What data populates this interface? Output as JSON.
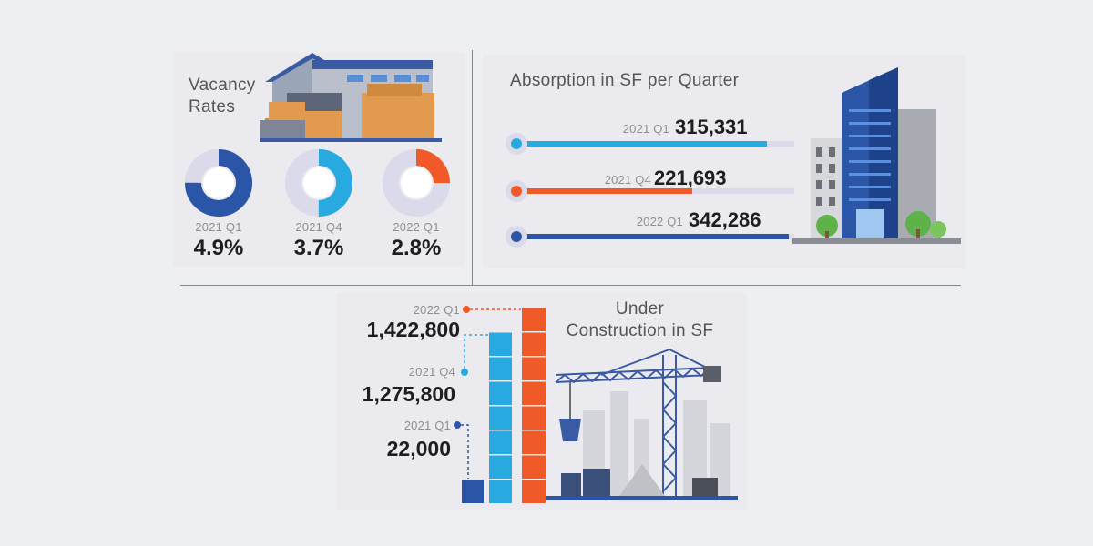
{
  "colors": {
    "dark_blue": "#2b56a8",
    "light_blue": "#28aae1",
    "orange": "#f05a28",
    "track": "#dadaea",
    "text": "#1e1e1e",
    "label": "#8f8f8f"
  },
  "icons": {
    "warehouse": "warehouse-illustration",
    "office": "office-building-illustration",
    "crane": "construction-crane-illustration"
  },
  "vacancy": {
    "title_line1": "Vacancy",
    "title_line2": "Rates",
    "items": [
      {
        "period": "2021 Q1",
        "value_label": "4.9%",
        "fraction": 0.75,
        "color": "#2b56a8"
      },
      {
        "period": "2021 Q4",
        "value_label": "3.7%",
        "fraction": 0.5,
        "color": "#28aae1"
      },
      {
        "period": "2022 Q1",
        "value_label": "2.8%",
        "fraction": 0.25,
        "color": "#f05a28"
      }
    ]
  },
  "absorption": {
    "title": "Absorption in SF per Quarter",
    "items": [
      {
        "period": "2021 Q1",
        "value_label": "315,331",
        "value": 315331,
        "color": "#28aae1"
      },
      {
        "period": "2021 Q4",
        "value_label": "221,693",
        "value": 221693,
        "color": "#f05a28"
      },
      {
        "period": "2022 Q1",
        "value_label": "342,286",
        "value": 342286,
        "color": "#2b56a8"
      }
    ]
  },
  "construction": {
    "title_line1": "Under",
    "title_line2": "Construction in SF",
    "items": [
      {
        "period": "2022 Q1",
        "value_label": "1,422,800",
        "value": 1422800,
        "color": "#f05a28"
      },
      {
        "period": "2021 Q4",
        "value_label": "1,275,800",
        "value": 1275800,
        "color": "#28aae1"
      },
      {
        "period": "2021 Q1",
        "value_label": "22,000",
        "value": 22000,
        "color": "#2b56a8"
      }
    ]
  },
  "chart_data": [
    {
      "type": "pie",
      "title": "Vacancy Rates",
      "categories": [
        "2021 Q1",
        "2021 Q4",
        "2022 Q1"
      ],
      "values": [
        4.9,
        3.7,
        2.8
      ],
      "unit": "%"
    },
    {
      "type": "bar",
      "title": "Absorption in SF per Quarter",
      "categories": [
        "2021 Q1",
        "2021 Q4",
        "2022 Q1"
      ],
      "values": [
        315331,
        221693,
        342286
      ]
    },
    {
      "type": "bar",
      "title": "Under Construction in SF",
      "categories": [
        "2021 Q1",
        "2021 Q4",
        "2022 Q1"
      ],
      "values": [
        22000,
        1275800,
        1422800
      ]
    }
  ]
}
